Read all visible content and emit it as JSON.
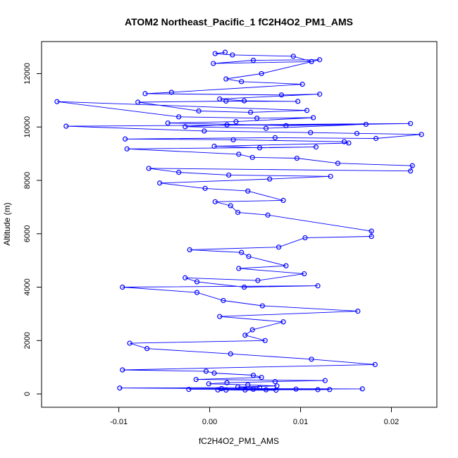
{
  "chart_data": {
    "type": "scatter",
    "title": "ATOM2 Northeast_Pacific_1 fC2H4O2_PM1_AMS",
    "xlabel": "fC2H4O2_PM1_AMS",
    "ylabel": "Altitude (m)",
    "xlim": [
      -0.0185,
      0.025
    ],
    "ylim": [
      -500,
      13200
    ],
    "x_ticks": [
      -0.01,
      0.0,
      0.01,
      0.02
    ],
    "x_tick_labels": [
      "-0.01",
      "0.00",
      "0.01",
      "0.02"
    ],
    "y_ticks": [
      0,
      2000,
      4000,
      6000,
      8000,
      10000,
      12000
    ],
    "y_tick_labels": [
      "0",
      "2000",
      "4000",
      "6000",
      "8000",
      "10000",
      "12000"
    ],
    "marker": "open-circle",
    "connected": true,
    "color": "#0000ff",
    "series": [
      {
        "x": [
          0.0017,
          0.0006,
          0.0025,
          0.0092,
          0.0112,
          0.0004,
          0.0048,
          0.0121,
          0.0057,
          0.0018,
          0.0035,
          0.0102,
          -0.0042,
          -0.0071,
          0.0079,
          0.0121,
          0.0011,
          0.0038,
          0.0097,
          0.0018,
          -0.0079,
          -0.0012,
          0.0045,
          0.0107,
          -0.0168,
          -0.0034,
          0.0052,
          0.0114,
          0.0029,
          -0.0046,
          0.0084,
          0.0221,
          0.0019,
          -0.0027,
          0.0062,
          0.0172,
          -0.0158,
          -0.0006,
          0.0111,
          0.0162,
          0.0233,
          0.0183,
          0.0072,
          -0.0093,
          0.0026,
          0.0148,
          0.0153,
          0.0005,
          0.0055,
          0.0117,
          -0.0091,
          0.0032,
          0.0047,
          0.0096,
          0.0141,
          0.0223,
          0.0221,
          -0.0067,
          -0.0034,
          0.0021,
          0.0133,
          0.0066,
          -0.0055,
          -0.0005,
          0.0042,
          0.0081,
          0.0006,
          0.0023,
          0.0031,
          0.0064,
          0.0178,
          0.0178,
          0.0105,
          0.0076,
          -0.0022,
          0.0035,
          0.0043,
          0.0084,
          0.0032,
          0.0104,
          0.0053,
          -0.0027,
          -0.0014,
          0.0038,
          0.0119,
          -0.0096,
          -0.0014,
          0.0015,
          0.0058,
          0.0163,
          0.0011,
          0.0081,
          0.0047,
          0.0039,
          0.0061,
          -0.0088,
          -0.0069,
          0.0023,
          0.0112,
          0.0182,
          -0.0096,
          -0.0004,
          0.0005,
          0.0048,
          0.0057,
          -0.0015,
          0.0127,
          0.0072,
          0.0019,
          -0.0001,
          0.0042,
          0.0074,
          0.0031,
          0.0055,
          -0.0099,
          0.0013,
          0.0168,
          0.0095,
          0.0048,
          -0.0023,
          0.0132,
          0.0119,
          0.0062,
          0.0009,
          0.0039,
          0.0018,
          0.0073
        ],
        "y": [
          12800,
          12750,
          12700,
          12650,
          12450,
          12380,
          12500,
          12520,
          12000,
          11800,
          11700,
          11600,
          11300,
          11250,
          11200,
          11230,
          11050,
          10980,
          10960,
          10970,
          10930,
          10600,
          10550,
          10620,
          10950,
          10380,
          10330,
          10350,
          10200,
          10150,
          10050,
          10130,
          10080,
          10010,
          9950,
          10100,
          10030,
          9850,
          9790,
          9760,
          9720,
          9570,
          9600,
          9550,
          9520,
          9450,
          9400,
          9280,
          9220,
          9250,
          9180,
          8980,
          8860,
          8830,
          8640,
          8550,
          8350,
          8450,
          8300,
          8200,
          8150,
          8050,
          7900,
          7700,
          7600,
          7250,
          7200,
          7050,
          6800,
          6700,
          6100,
          5900,
          5850,
          5500,
          5400,
          5300,
          5150,
          4800,
          4700,
          4500,
          4250,
          4350,
          4200,
          4000,
          4050,
          4000,
          3800,
          3500,
          3300,
          3100,
          2900,
          2700,
          2400,
          2200,
          2000,
          1900,
          1700,
          1500,
          1300,
          1100,
          900,
          850,
          780,
          700,
          620,
          540,
          500,
          460,
          420,
          380,
          340,
          300,
          260,
          240,
          220,
          200,
          190,
          180,
          175,
          170,
          165,
          160,
          155,
          150,
          148,
          145,
          140
        ]
      }
    ]
  }
}
